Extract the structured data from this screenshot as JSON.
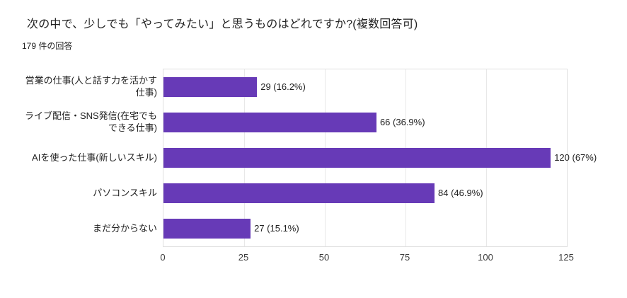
{
  "header": {
    "title": "次の中で、少しでも「やってみたい」と思うものはどれですか?(複数回答可)",
    "subtitle": "179 件の回答"
  },
  "chart_data": {
    "type": "bar",
    "orientation": "horizontal",
    "title": "次の中で、少しでも「やってみたい」と思うものはどれですか?(複数回答可)",
    "subtitle": "179 件の回答",
    "categories": [
      "営業の仕事(人と話す力を活かす仕事)",
      "ライブ配信・SNS発信(在宅でもできる仕事)",
      "AIを使った仕事(新しいスキル)",
      "パソコンスキル",
      "まだ分からない"
    ],
    "values": [
      29,
      66,
      120,
      84,
      27
    ],
    "value_labels": [
      "29 (16.2%)",
      "66 (36.9%)",
      "120 (67%)",
      "84 (46.9%)",
      "27 (15.1%)"
    ],
    "xticks": [
      0,
      25,
      50,
      75,
      100,
      125
    ],
    "xlim": [
      0,
      125
    ],
    "xlabel": "",
    "ylabel": "",
    "bar_color": "#673ab7",
    "grid": true,
    "legend": "none",
    "background": "#ffffff"
  }
}
